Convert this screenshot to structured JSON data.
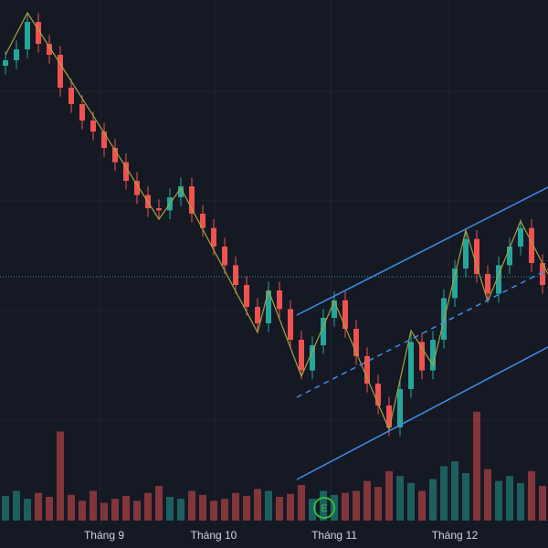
{
  "chart_data": {
    "type": "candlestick",
    "categories": [
      null,
      null,
      null,
      null,
      null,
      null,
      null,
      null,
      null,
      "Tháng 9",
      null,
      null,
      null,
      null,
      null,
      null,
      null,
      null,
      null,
      "Tháng 10",
      null,
      null,
      null,
      null,
      null,
      null,
      null,
      null,
      null,
      null,
      "Tháng 11",
      null,
      null,
      null,
      null,
      null,
      null,
      null,
      null,
      null,
      null,
      "Tháng 12",
      null,
      null,
      null,
      null,
      null,
      null,
      null,
      null
    ],
    "open": [
      54.0,
      54.5,
      55.5,
      58.0,
      56.0,
      55.0,
      52.0,
      50.5,
      49.0,
      48.0,
      46.5,
      45.2,
      43.5,
      42.2,
      41.0,
      40.8,
      42.0,
      43.0,
      40.5,
      39.2,
      37.5,
      35.8,
      34.0,
      32.0,
      30.5,
      33.5,
      31.8,
      29.0,
      26.2,
      28.5,
      31.0,
      32.6,
      30.0,
      27.5,
      25.0,
      23.0,
      21.0,
      24.5,
      28.8,
      26.2,
      29.0,
      32.8,
      35.5,
      38.2,
      35.0,
      33.2,
      35.8,
      37.5,
      39.2,
      36.0
    ],
    "high": [
      55.3,
      56.3,
      58.8,
      58.8,
      56.8,
      55.8,
      52.8,
      51.3,
      49.8,
      48.8,
      47.3,
      46.0,
      44.3,
      43.0,
      41.8,
      42.8,
      43.8,
      43.8,
      41.3,
      40.0,
      38.3,
      36.6,
      34.8,
      32.8,
      34.3,
      34.3,
      32.6,
      29.8,
      29.3,
      31.8,
      33.4,
      33.4,
      30.8,
      28.3,
      25.8,
      23.8,
      25.3,
      29.6,
      29.6,
      29.8,
      33.6,
      36.3,
      39.0,
      39.0,
      35.8,
      36.6,
      38.3,
      40.0,
      40.0,
      36.8
    ],
    "low": [
      53.2,
      53.7,
      54.7,
      55.2,
      54.2,
      51.2,
      49.7,
      48.2,
      47.2,
      45.7,
      44.4,
      42.7,
      41.4,
      40.2,
      40.0,
      40.0,
      41.2,
      39.7,
      38.4,
      36.7,
      35.0,
      33.2,
      31.2,
      29.7,
      29.7,
      31.0,
      28.2,
      25.4,
      25.4,
      27.7,
      30.2,
      29.2,
      26.7,
      24.2,
      22.2,
      20.2,
      20.2,
      23.7,
      25.4,
      25.4,
      28.2,
      32.0,
      34.7,
      34.2,
      32.4,
      32.4,
      35.0,
      36.7,
      35.2,
      33.2
    ],
    "close": [
      54.5,
      55.5,
      58.0,
      56.0,
      55.0,
      52.0,
      50.5,
      49.0,
      48.0,
      46.5,
      45.2,
      43.5,
      42.2,
      41.0,
      40.8,
      42.0,
      43.0,
      40.5,
      39.2,
      37.5,
      35.8,
      34.0,
      32.0,
      30.5,
      33.5,
      31.8,
      29.0,
      26.2,
      28.5,
      31.0,
      32.6,
      30.0,
      27.5,
      25.0,
      23.0,
      21.0,
      24.5,
      28.8,
      26.2,
      29.0,
      32.8,
      35.5,
      38.2,
      35.0,
      33.2,
      35.8,
      37.5,
      39.2,
      36.0,
      34.0
    ],
    "volume": [
      25,
      30,
      22,
      28,
      24,
      90,
      26,
      20,
      30,
      18,
      22,
      25,
      20,
      28,
      35,
      24,
      22,
      30,
      26,
      20,
      22,
      28,
      25,
      32,
      30,
      24,
      27,
      36,
      22,
      30,
      26,
      28,
      30,
      40,
      34,
      50,
      45,
      38,
      30,
      42,
      55,
      60,
      48,
      110,
      52,
      40,
      45,
      38,
      50,
      35
    ],
    "ylim": [
      20,
      60
    ],
    "volume_ylim": [
      0,
      120
    ],
    "up_color": "#26a69a",
    "down_color": "#ef5350",
    "event_label": "E"
  }
}
